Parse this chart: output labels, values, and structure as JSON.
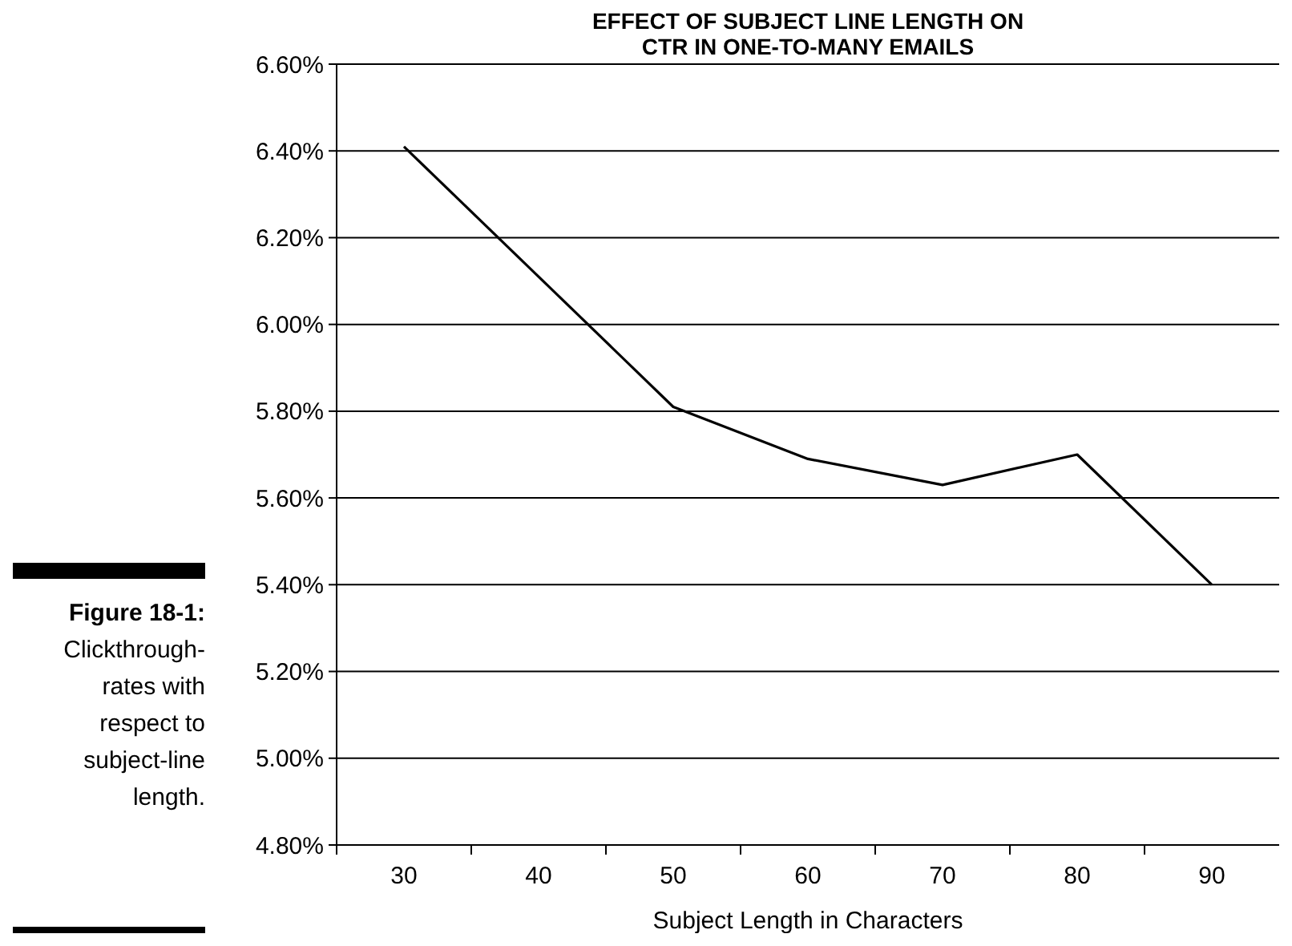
{
  "chart_data": {
    "type": "line",
    "title": "EFFECT OF SUBJECT LINE LENGTH ON\nCTR IN ONE-TO-MANY EMAILS",
    "xlabel": "Subject Length in Characters",
    "categories": [
      "30",
      "40",
      "50",
      "60",
      "70",
      "80",
      "90"
    ],
    "series": [
      {
        "color": "#000000",
        "values": [
          6.41,
          6.11,
          5.81,
          5.69,
          5.63,
          5.7,
          5.4
        ]
      }
    ],
    "ylim": [
      4.8,
      6.6
    ],
    "yticks": [
      {
        "value": 4.8,
        "label": "4.80%"
      },
      {
        "value": 5.0,
        "label": "5.00%"
      },
      {
        "value": 5.2,
        "label": "5.20%"
      },
      {
        "value": 5.4,
        "label": "5.40%"
      },
      {
        "value": 5.6,
        "label": "5.60%"
      },
      {
        "value": 5.8,
        "label": "5.80%"
      },
      {
        "value": 6.0,
        "label": "6.00%"
      },
      {
        "value": 6.2,
        "label": "6.20%"
      },
      {
        "value": 6.4,
        "label": "6.40%"
      },
      {
        "value": 6.6,
        "label": "6.60%"
      }
    ],
    "grid": "y",
    "marker": "none",
    "line_style": "solid",
    "annotations": [
      "Figure 18-1: Clickthrough-rates with respect to subject-line length."
    ]
  }
}
